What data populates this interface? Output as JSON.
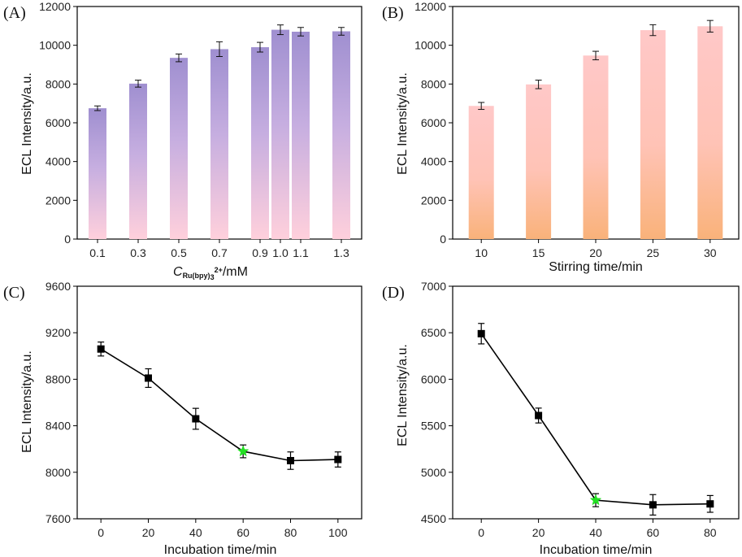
{
  "chart_data": [
    {
      "panel": "(A)",
      "type": "bar",
      "categories": [
        "0.1",
        "0.3",
        "0.5",
        "0.7",
        "0.9",
        "1.0",
        "1.1",
        "1.3"
      ],
      "x": [
        0.1,
        0.3,
        0.5,
        0.7,
        0.9,
        1.0,
        1.1,
        1.3
      ],
      "values": [
        6750,
        8020,
        9350,
        9800,
        9900,
        10800,
        10700,
        10720
      ],
      "errors": [
        120,
        180,
        200,
        380,
        250,
        250,
        220,
        200
      ],
      "xlim": [
        0.0,
        1.4
      ],
      "ylim": [
        0,
        12000
      ],
      "yticks": [
        0,
        2000,
        4000,
        6000,
        8000,
        10000,
        12000
      ],
      "xlabel_main": "C",
      "xlabel_sub": "Ru(bpy)",
      "xlabel_sub2": "3",
      "xlabel_sup": "2+",
      "xlabel_rest": "/mM",
      "ylabel": "ECL Intensity/a.u.",
      "gradient": {
        "top": "#9f8fd0",
        "bottom": "#ffd0dc"
      }
    },
    {
      "panel": "(B)",
      "type": "bar",
      "categories": [
        "10",
        "15",
        "20",
        "25",
        "30"
      ],
      "x": [
        10,
        15,
        20,
        25,
        30
      ],
      "values": [
        6870,
        7980,
        9470,
        10780,
        10980
      ],
      "errors": [
        180,
        220,
        220,
        280,
        300
      ],
      "xlim": [
        7.5,
        32.5
      ],
      "ylim": [
        0,
        12000
      ],
      "yticks": [
        0,
        2000,
        4000,
        6000,
        8000,
        10000,
        12000
      ],
      "xlabel": "Stirring time/min",
      "ylabel": "ECL Intensity/a.u.",
      "gradient": {
        "top": "#ffc8c8",
        "bottom": "#f9b27a"
      }
    },
    {
      "panel": "(C)",
      "type": "line",
      "x": [
        0,
        20,
        40,
        60,
        80,
        100
      ],
      "values": [
        9060,
        8810,
        8460,
        8180,
        8100,
        8110
      ],
      "errors": [
        60,
        80,
        90,
        55,
        75,
        65
      ],
      "highlight_index": 3,
      "xlim": [
        -10,
        110
      ],
      "ylim": [
        7600,
        9600
      ],
      "xticks": [
        0,
        20,
        40,
        60,
        80,
        100
      ],
      "yticks": [
        7600,
        8000,
        8400,
        8800,
        9200,
        9600
      ],
      "xlabel": "Incubation time/min",
      "ylabel": "ECL Intensity/a.u.",
      "highlight_color": "#22e022"
    },
    {
      "panel": "(D)",
      "type": "line",
      "x": [
        0,
        20,
        40,
        60,
        80
      ],
      "values": [
        6490,
        5610,
        4700,
        4650,
        4660
      ],
      "errors": [
        110,
        80,
        70,
        110,
        90
      ],
      "highlight_index": 2,
      "xlim": [
        -10,
        90
      ],
      "ylim": [
        4500,
        7000
      ],
      "xticks": [
        0,
        20,
        40,
        60,
        80
      ],
      "yticks": [
        4500,
        5000,
        5500,
        6000,
        6500,
        7000
      ],
      "xlabel": "Incubation time/min",
      "ylabel": "ECL Intensity/a.u.",
      "highlight_color": "#22e022"
    }
  ]
}
